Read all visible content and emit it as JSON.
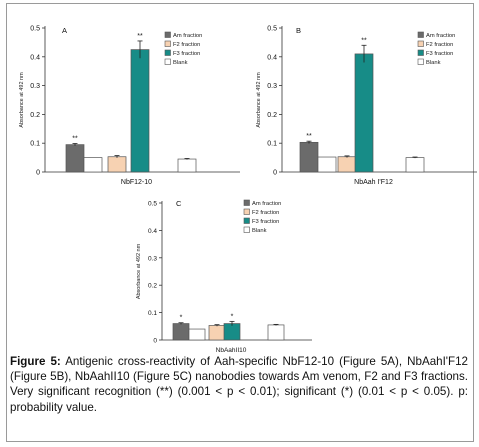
{
  "colors": {
    "am": "#6b6b6b",
    "f2": "#f7d2b2",
    "f3": "#178c87",
    "blank": "#ffffff"
  },
  "chart_data": [
    {
      "type": "bar",
      "panel": "A",
      "xlabel": "NbF12-10",
      "ylabel": "Absorbance at 492 nm",
      "ylim": [
        0,
        0.5
      ],
      "yticks": [
        "0",
        "0.1",
        "0.2",
        "0.3",
        "0.4",
        "0.5"
      ],
      "legend": [
        "Am fraction",
        "F2 fraction",
        "F3 fraction",
        "Blank"
      ],
      "series": [
        {
          "name": "Am fraction",
          "value": 0.095,
          "error": 0.004,
          "annotation": "**"
        },
        {
          "name": "F2 fraction",
          "value": 0.053,
          "error": 0.004,
          "annotation": ""
        },
        {
          "name": "F3 fraction",
          "value": 0.425,
          "error": 0.03,
          "annotation": "**"
        },
        {
          "name": "Blank",
          "value": 0.045,
          "error": 0.002,
          "annotation": ""
        }
      ],
      "extra": {
        "name": "Blank",
        "value": 0.05,
        "position": 1
      }
    },
    {
      "type": "bar",
      "panel": "B",
      "xlabel": "NbAah I'F12",
      "ylabel": "Absorbance at 492 nm",
      "ylim": [
        0,
        0.5
      ],
      "yticks": [
        "0",
        "0.1",
        "0.2",
        "0.3",
        "0.4",
        "0.5"
      ],
      "legend": [
        "Am fraction",
        "F2 fraction",
        "F3 fraction",
        "Blank"
      ],
      "series": [
        {
          "name": "Am fraction",
          "value": 0.103,
          "error": 0.004,
          "annotation": "**"
        },
        {
          "name": "F2 fraction",
          "value": 0.053,
          "error": 0.003,
          "annotation": ""
        },
        {
          "name": "F3 fraction",
          "value": 0.41,
          "error": 0.03,
          "annotation": "**"
        },
        {
          "name": "Blank",
          "value": 0.05,
          "error": 0.002,
          "annotation": ""
        }
      ],
      "extra": {
        "name": "Blank",
        "value": 0.052,
        "position": 1
      }
    },
    {
      "type": "bar",
      "panel": "C",
      "xlabel": "NbAahII10",
      "ylabel": "Absorbance at 492 nm",
      "ylim": [
        0,
        0.5
      ],
      "yticks": [
        "0",
        "0.1",
        "0.2",
        "0.3",
        "0.4",
        "0.5"
      ],
      "legend": [
        "Am fraction",
        "F2 fraction",
        "F3 fraction",
        "Blank"
      ],
      "series": [
        {
          "name": "Am fraction",
          "value": 0.06,
          "error": 0.003,
          "annotation": "*"
        },
        {
          "name": "F2 fraction",
          "value": 0.053,
          "error": 0.003,
          "annotation": ""
        },
        {
          "name": "F3 fraction",
          "value": 0.06,
          "error": 0.008,
          "annotation": "*"
        },
        {
          "name": "Blank",
          "value": 0.055,
          "error": 0.002,
          "annotation": ""
        }
      ],
      "extra": {
        "name": "Blank",
        "value": 0.04,
        "position": 1
      }
    }
  ],
  "caption": {
    "label": "Figure 5:",
    "text": "Antigenic cross-reactivity of Aah-specific NbF12-10 (Figure 5A), NbAahI'F12 (Figure 5B), NbAahII10 (Figure 5C) nanobodies towards Am venom, F2 and F3 fractions. Very significant recognition (**) (0.001 < p < 0.01); significant (*) (0.01 < p < 0.05). p: probability value."
  }
}
